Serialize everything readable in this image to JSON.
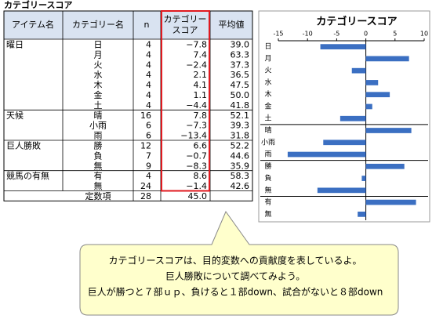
{
  "title": "カテゴリースコア",
  "table": {
    "header": [
      "アイテム名",
      "カテゴリー名",
      "n",
      "カテゴリー",
      "スコア",
      "平均値"
    ],
    "groups": [
      {
        "name": "曜日",
        "rows": [
          [
            "日",
            "4",
            "−7.8",
            "39.0"
          ],
          [
            "月",
            "4",
            "7.4",
            "63.3"
          ],
          [
            "火",
            "4",
            "−2.4",
            "37.3"
          ],
          [
            "水",
            "4",
            "2.1",
            "36.5"
          ],
          [
            "木",
            "4",
            "4.1",
            "47.5"
          ],
          [
            "金",
            "4",
            "1.1",
            "50.0"
          ],
          [
            "土",
            "4",
            "−4.4",
            "41.8"
          ]
        ]
      },
      {
        "name": "天候",
        "rows": [
          [
            "晴",
            "16",
            "7.8",
            "52.1"
          ],
          [
            "小雨",
            "6",
            "−7.3",
            "39.3"
          ],
          [
            "雨",
            "6",
            "−13.4",
            "31.8"
          ]
        ]
      },
      {
        "name": "巨人勝敗",
        "rows": [
          [
            "勝",
            "12",
            "6.6",
            "52.2"
          ],
          [
            "負",
            "7",
            "−0.7",
            "44.6"
          ],
          [
            "無",
            "9",
            "−8.3",
            "35.9"
          ]
        ]
      },
      {
        "name": "競馬の有無",
        "rows": [
          [
            "有",
            "4",
            "8.6",
            "58.3"
          ],
          [
            "無",
            "24",
            "−1.4",
            "42.6"
          ]
        ]
      }
    ],
    "constant": [
      "定数項",
      "28",
      "45.0"
    ]
  },
  "callout": {
    "lines": [
      "カテゴリースコアは、目的変数への貢献度を表しているよ。",
      "巨人勝敗について調べてみよう。",
      "巨人が勝つと７部ｕｐ、負けると１部down、試合がないと８部down"
    ]
  },
  "chart_data": {
    "type": "barh",
    "title": "カテゴリースコア",
    "categories": [
      "日",
      "月",
      "火",
      "水",
      "木",
      "金",
      "土",
      "晴",
      "小雨",
      "雨",
      "勝",
      "負",
      "無",
      "有",
      "無"
    ],
    "values": [
      -7.8,
      7.4,
      -2.4,
      2.1,
      4.1,
      1.1,
      -4.4,
      7.8,
      -7.3,
      -13.4,
      6.6,
      -0.7,
      -8.3,
      8.6,
      -1.4
    ],
    "color": "#3b6fc2",
    "xlim": [
      -15,
      10
    ],
    "xticks": [
      -15,
      -10,
      -5,
      0,
      5,
      10
    ]
  }
}
